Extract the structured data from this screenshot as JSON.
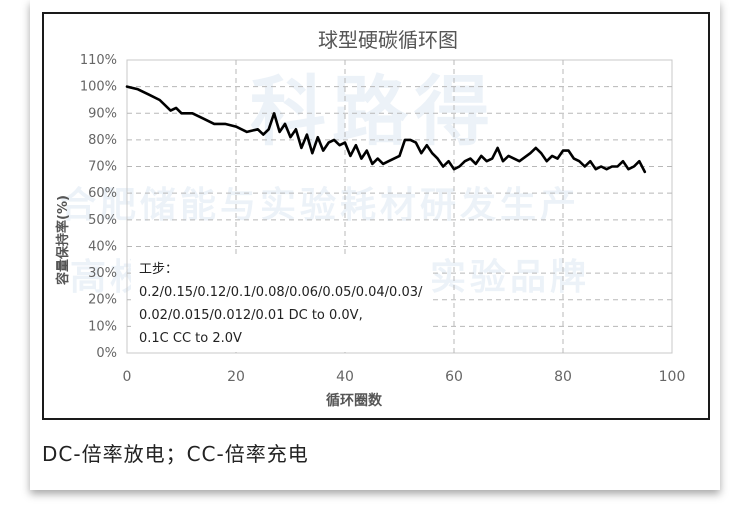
{
  "chart_data": {
    "type": "line",
    "title": "球型硬碳循环图",
    "xlabel": "循环圈数",
    "ylabel": "容量保持率(%)",
    "xlim": [
      0,
      100
    ],
    "ylim": [
      0,
      1.1
    ],
    "x_ticks": [
      "0",
      "20",
      "40",
      "60",
      "80",
      "100"
    ],
    "y_ticks": [
      "0%",
      "10%",
      "20%",
      "30%",
      "40%",
      "50%",
      "60%",
      "70%",
      "80%",
      "90%",
      "100%",
      "110%"
    ],
    "grid": true,
    "series": [
      {
        "color": "#000000",
        "x": [
          0,
          2,
          4,
          6,
          8,
          9,
          10,
          12,
          14,
          16,
          18,
          20,
          22,
          24,
          25,
          26,
          27,
          28,
          29,
          30,
          31,
          32,
          33,
          34,
          35,
          36,
          37,
          38,
          39,
          40,
          41,
          42,
          43,
          44,
          45,
          46,
          47,
          48,
          50,
          51,
          52,
          53,
          54,
          55,
          56,
          57,
          58,
          59,
          60,
          61,
          62,
          63,
          64,
          65,
          66,
          67,
          68,
          69,
          70,
          72,
          74,
          75,
          76,
          77,
          78,
          79,
          80,
          81,
          82,
          83,
          84,
          85,
          86,
          87,
          88,
          89,
          90,
          91,
          92,
          93,
          94,
          95
        ],
        "y": [
          1.0,
          0.99,
          0.97,
          0.95,
          0.91,
          0.92,
          0.9,
          0.9,
          0.88,
          0.86,
          0.86,
          0.85,
          0.83,
          0.84,
          0.82,
          0.84,
          0.9,
          0.83,
          0.86,
          0.81,
          0.84,
          0.77,
          0.82,
          0.75,
          0.81,
          0.76,
          0.79,
          0.8,
          0.78,
          0.79,
          0.74,
          0.78,
          0.73,
          0.76,
          0.71,
          0.73,
          0.71,
          0.72,
          0.74,
          0.8,
          0.8,
          0.79,
          0.75,
          0.78,
          0.75,
          0.73,
          0.7,
          0.72,
          0.69,
          0.7,
          0.72,
          0.73,
          0.71,
          0.74,
          0.72,
          0.73,
          0.77,
          0.72,
          0.74,
          0.72,
          0.75,
          0.77,
          0.75,
          0.72,
          0.74,
          0.73,
          0.76,
          0.76,
          0.73,
          0.72,
          0.7,
          0.72,
          0.69,
          0.7,
          0.69,
          0.7,
          0.7,
          0.72,
          0.69,
          0.7,
          0.72,
          0.68
        ]
      }
    ],
    "annotation": [
      "工步：",
      "0.2/0.15/0.12/0.1/0.08/0.06/0.05/0.04/0.03/",
      "0.02/0.015/0.012/0.01 DC to 0.0V,",
      "0.1C CC to 2.0V"
    ]
  },
  "caption": "DC-倍率放电；CC-倍率充电",
  "watermark": [
    "科路得",
    "合肥储能与实验耗材研发生产",
    "高校师生与企业推荐实验品牌"
  ]
}
